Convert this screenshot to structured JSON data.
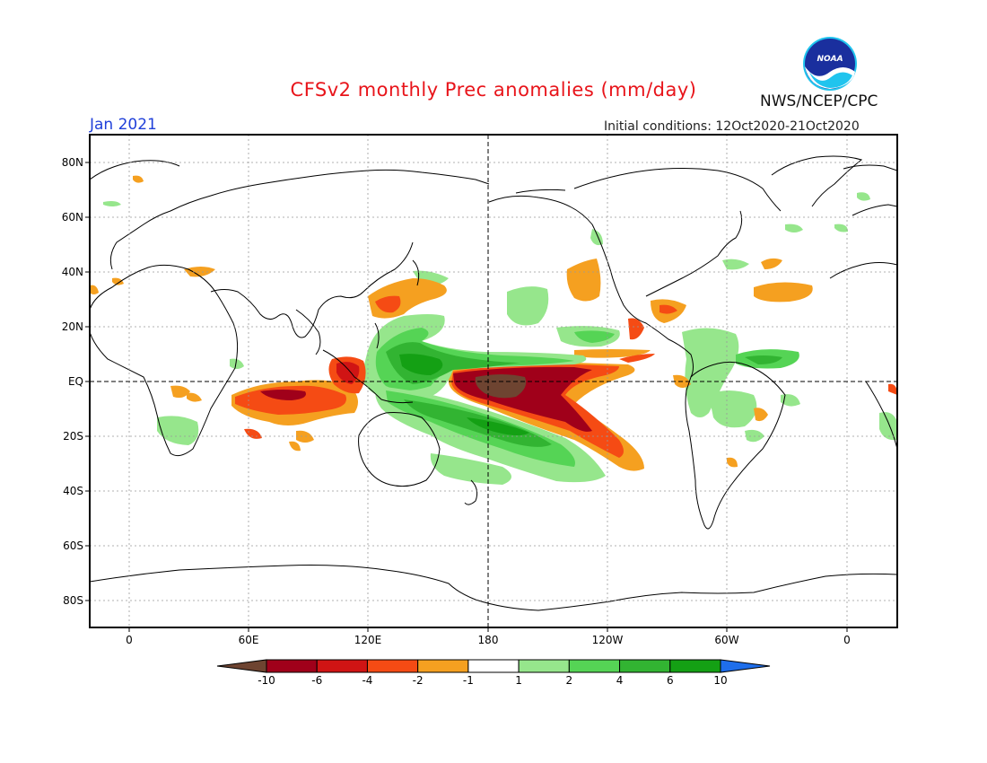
{
  "header": {
    "title": "CFSv2 monthly Prec anomalies (mm/day)",
    "month": "Jan 2021",
    "initial_conditions": "Initial conditions: 12Oct2020-21Oct2020",
    "agency": "NWS/NCEP/CPC",
    "logo_text": "NOAA"
  },
  "map": {
    "lat_labels": [
      "80N",
      "60N",
      "40N",
      "20N",
      "EQ",
      "20S",
      "40S",
      "60S",
      "80S"
    ],
    "lon_labels": [
      "0",
      "60E",
      "120E",
      "180",
      "120W",
      "60W",
      "0"
    ]
  },
  "colorbar": {
    "labels": [
      "-10",
      "-6",
      "-4",
      "-2",
      "-1",
      "1",
      "2",
      "4",
      "6",
      "10"
    ],
    "colors": [
      "#6e4431",
      "#a0001a",
      "#d01414",
      "#f54b14",
      "#f5a020",
      "#ffffff",
      "#96e68c",
      "#55d455",
      "#32b432",
      "#14a014",
      "#1e6eeb"
    ]
  },
  "anomaly_colors": {
    "brown": "#6e4431",
    "dark_red": "#a0001a",
    "red": "#d01414",
    "orange_red": "#f54b14",
    "orange": "#f5a020",
    "light_green": "#96e68c",
    "green": "#55d455",
    "mid_green": "#32b432",
    "dark_green": "#14a014"
  }
}
